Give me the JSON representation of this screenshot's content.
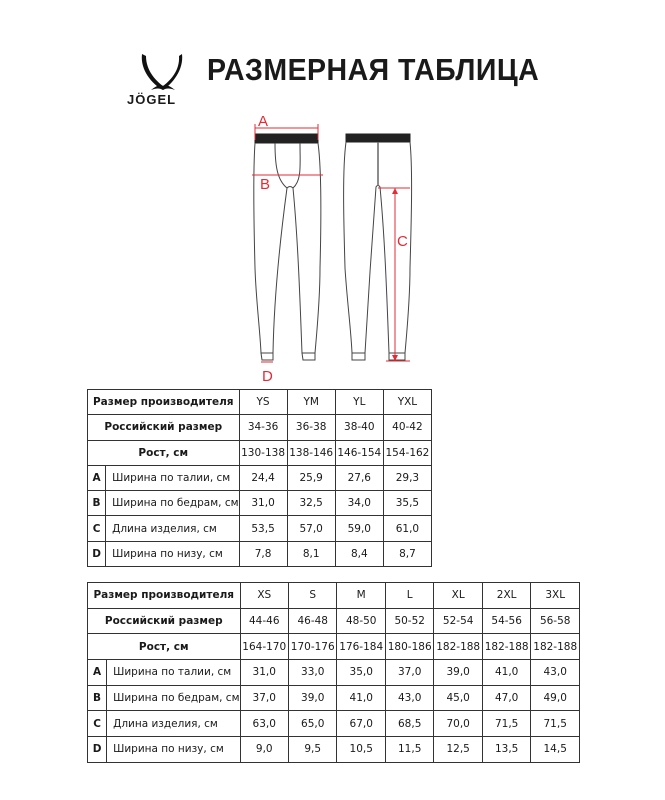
{
  "brand": {
    "logo_text": "JÖGEL"
  },
  "title": "РАЗМЕРНАЯ ТАБЛИЦА",
  "diagram": {
    "labels": {
      "a": "A",
      "b": "B",
      "c": "C",
      "d": "D"
    },
    "accent_color": "#e32b36"
  },
  "tables": [
    {
      "header": {
        "label": "Размер производителя",
        "sizes": [
          "YS",
          "YM",
          "YL",
          "YXL"
        ]
      },
      "russian": {
        "label": "Российский размер",
        "values": [
          "34-36",
          "36-38",
          "38-40",
          "40-42"
        ]
      },
      "height": {
        "label": "Рост, см",
        "values": [
          "130-138",
          "138-146",
          "146-154",
          "154-162"
        ]
      },
      "rows": [
        {
          "letter": "A",
          "label": "Ширина по талии, см",
          "values": [
            "24,4",
            "25,9",
            "27,6",
            "29,3"
          ]
        },
        {
          "letter": "B",
          "label": "Ширина по бедрам, см",
          "values": [
            "31,0",
            "32,5",
            "34,0",
            "35,5"
          ]
        },
        {
          "letter": "C",
          "label": "Длина изделия, см",
          "values": [
            "53,5",
            "57,0",
            "59,0",
            "61,0"
          ]
        },
        {
          "letter": "D",
          "label": "Ширина по низу, см",
          "values": [
            "7,8",
            "8,1",
            "8,4",
            "8,7"
          ]
        }
      ]
    },
    {
      "header": {
        "label": "Размер производителя",
        "sizes": [
          "XS",
          "S",
          "M",
          "L",
          "XL",
          "2XL",
          "3XL"
        ]
      },
      "russian": {
        "label": "Российский размер",
        "values": [
          "44-46",
          "46-48",
          "48-50",
          "50-52",
          "52-54",
          "54-56",
          "56-58"
        ]
      },
      "height": {
        "label": "Рост, см",
        "values": [
          "164-170",
          "170-176",
          "176-184",
          "180-186",
          "182-188",
          "182-188",
          "182-188"
        ]
      },
      "rows": [
        {
          "letter": "A",
          "label": "Ширина по талии, см",
          "values": [
            "31,0",
            "33,0",
            "35,0",
            "37,0",
            "39,0",
            "41,0",
            "43,0"
          ]
        },
        {
          "letter": "B",
          "label": "Ширина по бедрам, см",
          "values": [
            "37,0",
            "39,0",
            "41,0",
            "43,0",
            "45,0",
            "47,0",
            "49,0"
          ]
        },
        {
          "letter": "C",
          "label": "Длина изделия, см",
          "values": [
            "63,0",
            "65,0",
            "67,0",
            "68,5",
            "70,0",
            "71,5",
            "71,5"
          ]
        },
        {
          "letter": "D",
          "label": "Ширина по низу, см",
          "values": [
            "9,0",
            "9,5",
            "10,5",
            "11,5",
            "12,5",
            "13,5",
            "14,5"
          ]
        }
      ]
    }
  ]
}
